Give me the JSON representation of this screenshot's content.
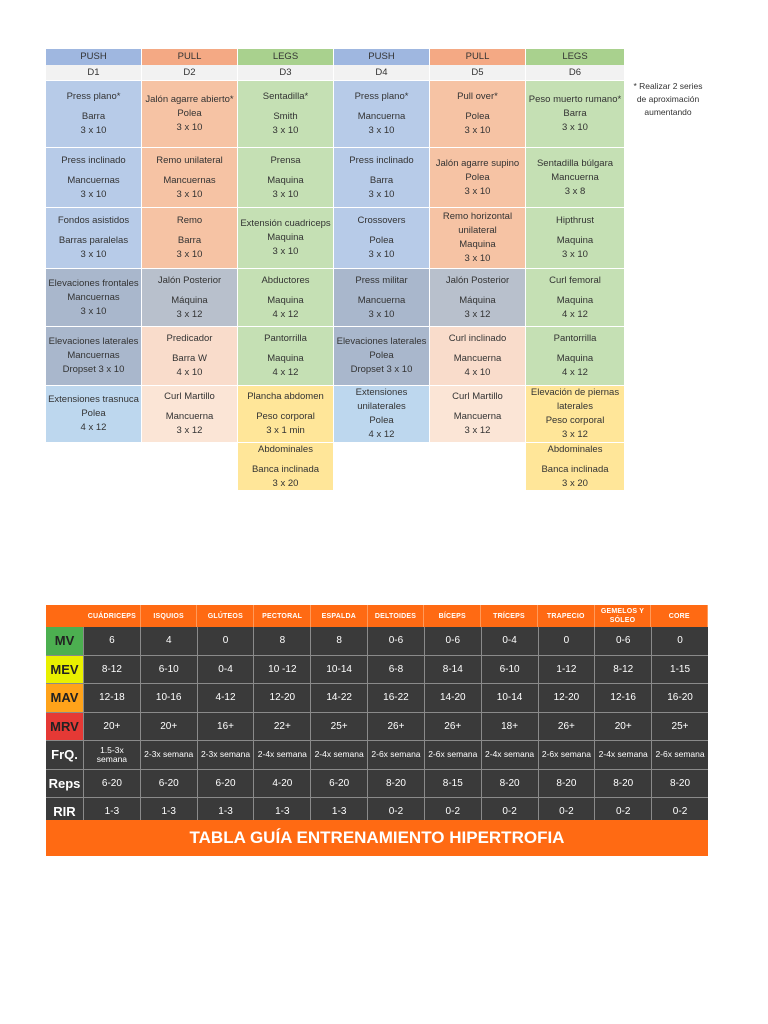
{
  "colors": {
    "push": "#b7cbe8",
    "push_header": "#9fb7e0",
    "pull": "#f6c3a4",
    "pull_header": "#f4a984",
    "legs": "#c5e0b4",
    "legs_header": "#a9d18e",
    "extra": "#ffe699",
    "days": "#f2f2f2",
    "hyper_orange": "#ff6a13",
    "hyper_dark": "#3a3a3a"
  },
  "routine": {
    "headers": [
      "PUSH",
      "PULL",
      "LEGS",
      "PUSH",
      "PULL",
      "LEGS"
    ],
    "days": [
      "D1",
      "D2",
      "D3",
      "D4",
      "D5",
      "D6"
    ],
    "rows": [
      [
        {
          "ex": "Press plano*",
          "eq": "Barra",
          "sets": "3 x 10"
        },
        {
          "ex": "Jalón agarre abierto*",
          "eq": "Polea",
          "sets": "3 x 10"
        },
        {
          "ex": "Sentadilla*",
          "eq": "Smith",
          "sets": "3 x 10"
        },
        {
          "ex": "Press plano*",
          "eq": "Mancuerna",
          "sets": "3 x 10"
        },
        {
          "ex": "Pull over*",
          "eq": "Polea",
          "sets": "3 x 10"
        },
        {
          "ex": "Peso muerto rumano*",
          "eq": "Barra",
          "sets": "3 x 10"
        }
      ],
      [
        {
          "ex": "Press inclinado",
          "eq": "Mancuernas",
          "sets": "3 x 10"
        },
        {
          "ex": "Remo unilateral",
          "eq": "Mancuernas",
          "sets": "3 x 10"
        },
        {
          "ex": "Prensa",
          "eq": "Maquina",
          "sets": "3 x 10"
        },
        {
          "ex": "Press inclinado",
          "eq": "Barra",
          "sets": "3 x 10"
        },
        {
          "ex": "Jalón agarre supino",
          "eq": "Polea",
          "sets": "3 x 10"
        },
        {
          "ex": "Sentadilla búlgara",
          "eq": "Mancuerna",
          "sets": "3 x 8"
        }
      ],
      [
        {
          "ex": "Fondos asistidos",
          "eq": "Barras paralelas",
          "sets": "3 x 10"
        },
        {
          "ex": "Remo",
          "eq": "Barra",
          "sets": "3 x 10"
        },
        {
          "ex": "Extensión cuadriceps",
          "eq": "Maquina",
          "sets": "3 x 10"
        },
        {
          "ex": "Crossovers",
          "eq": "Polea",
          "sets": "3 x 10"
        },
        {
          "ex": "Remo horizontal unilateral",
          "eq": "Maquina",
          "sets": "3 x 10"
        },
        {
          "ex": "Hipthrust",
          "eq": "Maquina",
          "sets": "3 x 10"
        }
      ],
      [
        {
          "ex": "Elevaciones frontales",
          "eq": "Mancuernas",
          "sets": "3 x 10"
        },
        {
          "ex": "Jalón Posterior",
          "eq": "Máquina",
          "sets": "3 x 12"
        },
        {
          "ex": "Abductores",
          "eq": "Maquina",
          "sets": "4 x 12"
        },
        {
          "ex": "Press militar",
          "eq": "Mancuerna",
          "sets": "3 x 10"
        },
        {
          "ex": "Jalón Posterior",
          "eq": "Máquina",
          "sets": "3 x 12"
        },
        {
          "ex": "Curl femoral",
          "eq": "Maquina",
          "sets": "4 x 12"
        }
      ],
      [
        {
          "ex": "Elevaciones laterales",
          "eq": "Mancuernas",
          "sets": "Dropset 3 x 10"
        },
        {
          "ex": "Predicador",
          "eq": "Barra W",
          "sets": "4 x 10"
        },
        {
          "ex": "Pantorrilla",
          "eq": "Maquina",
          "sets": "4 x 12"
        },
        {
          "ex": "Elevaciones laterales",
          "eq": "Polea",
          "sets": "Dropset 3 x 10"
        },
        {
          "ex": "Curl inclinado",
          "eq": "Mancuerna",
          "sets": "4 x 10"
        },
        {
          "ex": "Pantorrilla",
          "eq": "Maquina",
          "sets": "4 x 12"
        }
      ],
      [
        {
          "ex": "Extensiones trasnuca",
          "eq": "Polea",
          "sets": "4 x 12"
        },
        {
          "ex": "Curl Martillo",
          "eq": "Mancuerna",
          "sets": "3 x 12"
        },
        {
          "ex": "Plancha abdomen",
          "eq": "Peso corporal",
          "sets": "3 x 1 min"
        },
        {
          "ex": "Extensiones unilaterales",
          "eq": "Polea",
          "sets": "4 x 12"
        },
        {
          "ex": "Curl Martillo",
          "eq": "Mancuerna",
          "sets": "3 x 12"
        },
        {
          "ex": "Elevación de piernas laterales",
          "eq": "Peso corporal",
          "sets": "3 x 12"
        }
      ],
      [
        null,
        null,
        {
          "ex": "Abdominales",
          "eq": "Banca inclinada",
          "sets": "3 x 20"
        },
        null,
        null,
        {
          "ex": "Abdominales",
          "eq": "Banca inclinada",
          "sets": "3 x 20"
        }
      ]
    ],
    "note": "* Realizar 2 series de aproximación aumentando"
  },
  "hypertrophy": {
    "columns": [
      "CUÁDRICEPS",
      "ISQUIOS",
      "GLÚTEOS",
      "PECTORAL",
      "ESPALDA",
      "DELTOIDES",
      "BÍCEPS",
      "TRÍCEPS",
      "TRAPECIO",
      "GEMELOS Y SÓLEO",
      "CORE"
    ],
    "rows": [
      {
        "label": "MV",
        "color": "#4caf50",
        "values": [
          "6",
          "4",
          "0",
          "8",
          "8",
          "0-6",
          "0-6",
          "0-4",
          "0",
          "0-6",
          "0"
        ]
      },
      {
        "label": "MEV",
        "color": "#e8f000",
        "values": [
          "8-12",
          "6-10",
          "0-4",
          "10 -12",
          "10-14",
          "6-8",
          "8-14",
          "6-10",
          "1-12",
          "8-12",
          "1-15"
        ]
      },
      {
        "label": "MAV",
        "color": "#ffa31a",
        "values": [
          "12-18",
          "10-16",
          "4-12",
          "12-20",
          "14-22",
          "16-22",
          "14-20",
          "10-14",
          "12-20",
          "12-16",
          "16-20"
        ]
      },
      {
        "label": "MRV",
        "color": "#e53935",
        "values": [
          "20+",
          "20+",
          "16+",
          "22+",
          "25+",
          "26+",
          "26+",
          "18+",
          "26+",
          "20+",
          "25+"
        ]
      },
      {
        "label": "FrQ.",
        "color": "#3a3a3a",
        "values": [
          "1.5-3x semana",
          "2-3x semana",
          "2-3x semana",
          "2-4x semana",
          "2-4x semana",
          "2-6x semana",
          "2-6x semana",
          "2-4x semana",
          "2-6x semana",
          "2-4x semana",
          "2-6x semana"
        ]
      },
      {
        "label": "Reps",
        "color": "#3a3a3a",
        "values": [
          "6-20",
          "6-20",
          "6-20",
          "4-20",
          "6-20",
          "8-20",
          "8-15",
          "8-20",
          "8-20",
          "8-20",
          "8-20"
        ]
      },
      {
        "label": "RIR",
        "color": "#3a3a3a",
        "values": [
          "1-3",
          "1-3",
          "1-3",
          "1-3",
          "1-3",
          "0-2",
          "0-2",
          "0-2",
          "0-2",
          "0-2",
          "0-2"
        ]
      }
    ],
    "footer": "TABLA GUÍA ENTRENAMIENTO HIPERTROFIA"
  }
}
